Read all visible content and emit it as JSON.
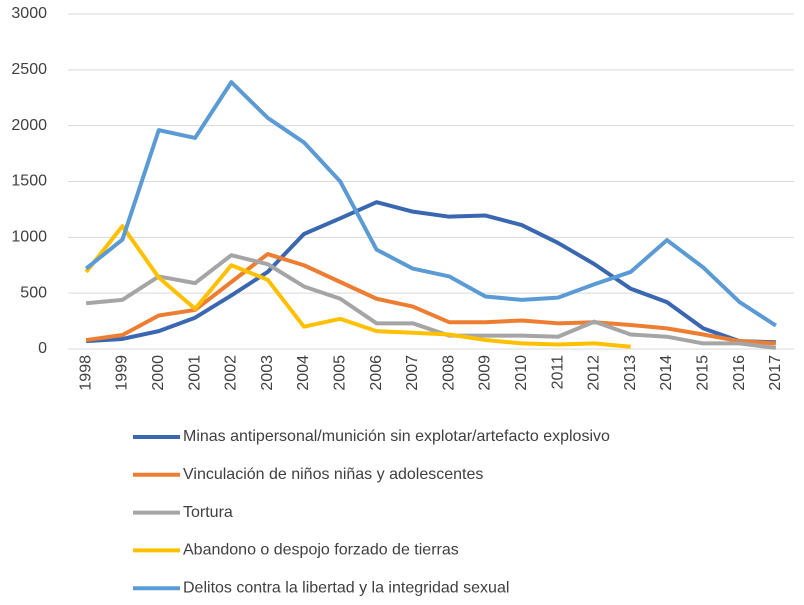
{
  "chart_data": {
    "type": "line",
    "categories": [
      "1998",
      "1999",
      "2000",
      "2001",
      "2002",
      "2003",
      "2004",
      "2005",
      "2006",
      "2007",
      "2008",
      "2009",
      "2010",
      "2011",
      "2012",
      "2013",
      "2014",
      "2015",
      "2016",
      "2017"
    ],
    "series": [
      {
        "name": "Minas antipersonal/munición sin explotar/artefacto explosivo",
        "color": "#3a67b1",
        "values": [
          70,
          90,
          160,
          280,
          480,
          690,
          1030,
          1170,
          1315,
          1230,
          1185,
          1195,
          1110,
          950,
          760,
          540,
          420,
          185,
          70,
          60
        ]
      },
      {
        "name": "Vinculación de niños niñas y adolescentes",
        "color": "#ed7d31",
        "values": [
          80,
          125,
          300,
          350,
          600,
          850,
          750,
          600,
          450,
          380,
          240,
          240,
          255,
          230,
          240,
          215,
          185,
          130,
          70,
          50
        ]
      },
      {
        "name": "Tortura",
        "color": "#a5a5a5",
        "values": [
          410,
          440,
          650,
          590,
          840,
          760,
          560,
          450,
          230,
          230,
          120,
          120,
          120,
          110,
          245,
          130,
          110,
          50,
          50,
          10
        ]
      },
      {
        "name": "Abandono o despojo forzado de tierras",
        "color": "#ffc000",
        "values": [
          690,
          1100,
          640,
          360,
          750,
          620,
          200,
          270,
          160,
          145,
          130,
          80,
          50,
          40,
          50,
          20,
          null,
          null,
          null,
          null
        ]
      },
      {
        "name": "Delitos contra la libertad y la integridad sexual",
        "color": "#5b9bd5",
        "values": [
          720,
          980,
          1960,
          1890,
          2390,
          2070,
          1850,
          1500,
          890,
          720,
          650,
          470,
          440,
          460,
          580,
          690,
          975,
          730,
          420,
          210
        ]
      }
    ],
    "ylim": [
      0,
      3000
    ],
    "yticks": [
      0,
      500,
      1000,
      1500,
      2000,
      2500,
      3000
    ],
    "grid": true,
    "legend_position": "bottom"
  }
}
